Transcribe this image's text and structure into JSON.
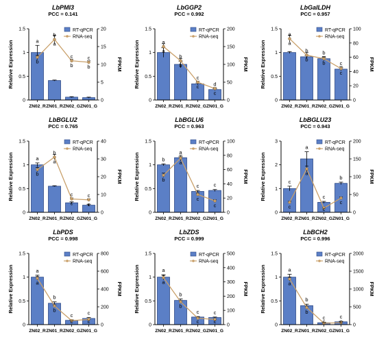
{
  "figure": {
    "colors": {
      "bar": "#5b7fc6",
      "bar_edge": "#2f4a86",
      "line": "#c9a06a",
      "line_point": "#c9a06a",
      "axis": "#000000"
    }
  },
  "chart_data": [
    {
      "type": "bar",
      "title": "LbPMI3",
      "pcc_label": "PCC = 0.141",
      "categories": [
        "ZN02_R",
        "ZN01_R",
        "ZN02_G",
        "ZN01_G"
      ],
      "ylabel": "Relative Expression",
      "y2label": "FPKM",
      "ylim": [
        0,
        1.5
      ],
      "yticks": [
        0,
        0.5,
        1.0,
        1.5
      ],
      "y2lim": [
        0,
        20
      ],
      "y2ticks": [
        0,
        5,
        10,
        15,
        20
      ],
      "series": [
        {
          "name": "RT-qPCR",
          "kind": "bar",
          "axis": "left",
          "values": [
            1.0,
            0.41,
            0.06,
            0.05
          ],
          "errors": [
            0.15,
            0.01,
            0.01,
            0.01
          ],
          "letters": [
            "a",
            "b",
            "c",
            "c"
          ]
        },
        {
          "name": "RNA-seq",
          "kind": "line",
          "axis": "right",
          "values": [
            12.0,
            17.0,
            11.0,
            10.6
          ],
          "errors": [
            0.5,
            1.2,
            0.4,
            0.4
          ],
          "letters": [
            "b",
            "a",
            "b",
            "b"
          ]
        }
      ]
    },
    {
      "type": "bar",
      "title": "LbGGP2",
      "pcc_label": "PCC = 0.992",
      "categories": [
        "ZN02_R",
        "ZN01_R",
        "ZN02_G",
        "ZN01_G"
      ],
      "ylabel": "Relative Expression",
      "y2label": "FPKM",
      "ylim": [
        0,
        1.5
      ],
      "yticks": [
        0,
        0.5,
        1.0,
        1.5
      ],
      "y2lim": [
        0,
        200
      ],
      "y2ticks": [
        0,
        50,
        100,
        150,
        200
      ],
      "series": [
        {
          "name": "RT-qPCR",
          "kind": "bar",
          "axis": "left",
          "values": [
            1.0,
            0.75,
            0.34,
            0.22
          ],
          "errors": [
            0.1,
            0.07,
            0.02,
            0.02
          ],
          "letters": [
            "a",
            "b",
            "c",
            "d"
          ]
        },
        {
          "name": "RNA-seq",
          "kind": "line",
          "axis": "right",
          "values": [
            150,
            110,
            50,
            32
          ],
          "errors": [
            8,
            6,
            3,
            3
          ],
          "letters": [
            "a",
            "b",
            "c",
            "c"
          ]
        }
      ]
    },
    {
      "type": "bar",
      "title": "LbGalLDH",
      "pcc_label": "PCC = 0.957",
      "categories": [
        "ZN02_R",
        "ZN01_R",
        "ZN02_G",
        "ZN01_G"
      ],
      "ylabel": "Relative Expression",
      "y2label": "FPKM",
      "ylim": [
        0,
        1.5
      ],
      "yticks": [
        0,
        0.5,
        1.0,
        1.5
      ],
      "y2lim": [
        0,
        100
      ],
      "y2ticks": [
        0,
        20,
        40,
        60,
        80,
        100
      ],
      "series": [
        {
          "name": "RT-qPCR",
          "kind": "bar",
          "axis": "left",
          "values": [
            1.0,
            0.91,
            0.87,
            0.65
          ],
          "errors": [
            0.02,
            0.03,
            0.03,
            0.03
          ],
          "letters": [
            "a",
            "b",
            "b",
            "c"
          ]
        },
        {
          "name": "RNA-seq",
          "kind": "line",
          "axis": "right",
          "values": [
            86,
            63,
            58,
            44
          ],
          "errors": [
            5,
            4,
            3,
            3
          ],
          "letters": [
            "a",
            "b",
            "b",
            "c"
          ]
        }
      ]
    },
    {
      "type": "bar",
      "title": "LbBGLU2",
      "pcc_label": "PCC = 0.765",
      "categories": [
        "ZN02_R",
        "ZN01_R",
        "ZN02_G",
        "ZN01_G"
      ],
      "ylabel": "Relative Expression",
      "y2label": "FPKM",
      "ylim": [
        0,
        1.5
      ],
      "yticks": [
        0,
        0.5,
        1.0,
        1.5
      ],
      "y2lim": [
        0,
        40
      ],
      "y2ticks": [
        0,
        10,
        20,
        30,
        40
      ],
      "series": [
        {
          "name": "RT-qPCR",
          "kind": "bar",
          "axis": "left",
          "values": [
            1.0,
            0.55,
            0.2,
            0.15
          ],
          "errors": [
            0.04,
            0.01,
            0.02,
            0.02
          ],
          "letters": [
            "a",
            "b",
            "c",
            "c"
          ]
        },
        {
          "name": "RNA-seq",
          "kind": "line",
          "axis": "right",
          "values": [
            24,
            31,
            7.5,
            7.0
          ],
          "errors": [
            1.2,
            1.5,
            0.6,
            0.6
          ],
          "letters": [
            "b",
            "a",
            "c",
            "c"
          ]
        }
      ]
    },
    {
      "type": "bar",
      "title": "LbBGLU6",
      "pcc_label": "PCC = 0.963",
      "categories": [
        "ZN02_R",
        "ZN01_R",
        "ZN02_G",
        "ZN01_G"
      ],
      "ylabel": "Relative Expression",
      "y2label": "FPKM",
      "ylim": [
        0,
        1.5
      ],
      "yticks": [
        0,
        0.5,
        1.0,
        1.5
      ],
      "y2lim": [
        0,
        100
      ],
      "y2ticks": [
        0,
        20,
        40,
        60,
        80,
        100
      ],
      "series": [
        {
          "name": "RT-qPCR",
          "kind": "bar",
          "axis": "left",
          "values": [
            1.0,
            1.15,
            0.44,
            0.46
          ],
          "errors": [
            0.02,
            0.02,
            0.02,
            0.02
          ],
          "letters": [
            "b",
            "a",
            "c",
            "c"
          ]
        },
        {
          "name": "RNA-seq",
          "kind": "line",
          "axis": "right",
          "values": [
            52,
            76,
            25,
            16
          ],
          "errors": [
            3,
            4,
            2,
            1.5
          ],
          "letters": [
            "b",
            "a",
            "c",
            "c"
          ]
        }
      ]
    },
    {
      "type": "bar",
      "title": "LbBGLU23",
      "pcc_label": "PCC = 0.943",
      "categories": [
        "ZN02_R",
        "ZN01_R",
        "ZN02_G",
        "ZN01_G"
      ],
      "ylabel": "Relative Expression",
      "y2label": "FPKM",
      "ylim": [
        0,
        3
      ],
      "yticks": [
        0,
        1,
        2,
        3
      ],
      "y2lim": [
        0,
        200
      ],
      "y2ticks": [
        0,
        50,
        100,
        150,
        200
      ],
      "series": [
        {
          "name": "RT-qPCR",
          "kind": "bar",
          "axis": "left",
          "values": [
            1.0,
            2.25,
            0.42,
            1.22
          ],
          "errors": [
            0.1,
            0.3,
            0.04,
            0.05
          ],
          "letters": [
            "c",
            "a",
            "c",
            "b"
          ]
        },
        {
          "name": "RNA-seq",
          "kind": "line",
          "axis": "right",
          "values": [
            28,
            122,
            12,
            40
          ],
          "errors": [
            3,
            8,
            1.5,
            3
          ],
          "letters": [
            "c",
            "a",
            "c",
            "c"
          ]
        }
      ]
    },
    {
      "type": "bar",
      "title": "LbPDS",
      "pcc_label": "PCC = 0.998",
      "categories": [
        "ZN02_R",
        "ZN01_R",
        "ZN02_G",
        "ZN01_G"
      ],
      "ylabel": "Relative Expression",
      "y2label": "FPKM",
      "ylim": [
        0,
        1.5
      ],
      "yticks": [
        0,
        0.5,
        1.0,
        1.5
      ],
      "y2lim": [
        0,
        800
      ],
      "y2ticks": [
        0,
        200,
        400,
        600,
        800
      ],
      "series": [
        {
          "name": "RT-qPCR",
          "kind": "bar",
          "axis": "left",
          "values": [
            1.0,
            0.45,
            0.09,
            0.13
          ],
          "errors": [
            0.04,
            0.03,
            0.01,
            0.02
          ],
          "letters": [
            "a",
            "b",
            "c",
            "c"
          ]
        },
        {
          "name": "RNA-seq",
          "kind": "line",
          "axis": "right",
          "values": [
            520,
            210,
            45,
            58
          ],
          "errors": [
            20,
            12,
            4,
            5
          ],
          "letters": [
            "a",
            "b",
            "c",
            "c"
          ]
        }
      ]
    },
    {
      "type": "bar",
      "title": "LbZDS",
      "pcc_label": "PCC = 0.999",
      "categories": [
        "ZN02_R",
        "ZN01_R",
        "ZN02_G",
        "ZN01_G"
      ],
      "ylabel": "Relative Expression",
      "y2label": "FPKM",
      "ylim": [
        0,
        1.5
      ],
      "yticks": [
        0,
        0.5,
        1.0,
        1.5
      ],
      "y2lim": [
        0,
        500
      ],
      "y2ticks": [
        0,
        100,
        200,
        300,
        400,
        500
      ],
      "series": [
        {
          "name": "RT-qPCR",
          "kind": "bar",
          "axis": "left",
          "values": [
            1.0,
            0.51,
            0.16,
            0.15
          ],
          "errors": [
            0.05,
            0.03,
            0.01,
            0.01
          ],
          "letters": [
            "a",
            "b",
            "c",
            "c"
          ]
        },
        {
          "name": "RNA-seq",
          "kind": "line",
          "axis": "right",
          "values": [
            330,
            160,
            45,
            36
          ],
          "errors": [
            15,
            8,
            3,
            3
          ],
          "letters": [
            "a",
            "b",
            "c",
            "c"
          ]
        }
      ]
    },
    {
      "type": "bar",
      "title": "LbBCH2",
      "pcc_label": "PCC = 0.996",
      "categories": [
        "ZN02_R",
        "ZN01_R",
        "ZN02_G",
        "ZN01_G"
      ],
      "ylabel": "Relative Expression",
      "y2label": "FPKM",
      "ylim": [
        0,
        1.5
      ],
      "yticks": [
        0,
        0.5,
        1.0,
        1.5
      ],
      "y2lim": [
        0,
        2000
      ],
      "y2ticks": [
        0,
        500,
        1000,
        1500,
        2000
      ],
      "series": [
        {
          "name": "RT-qPCR",
          "kind": "bar",
          "axis": "left",
          "values": [
            1.0,
            0.4,
            0.04,
            0.06
          ],
          "errors": [
            0.06,
            0.03,
            0.01,
            0.01
          ],
          "letters": [
            "a",
            "b",
            "c",
            "c"
          ]
        },
        {
          "name": "RNA-seq",
          "kind": "line",
          "axis": "right",
          "values": [
            1280,
            480,
            40,
            55
          ],
          "errors": [
            60,
            25,
            5,
            6
          ],
          "letters": [
            "a",
            "b",
            "c",
            "c"
          ]
        }
      ]
    }
  ]
}
